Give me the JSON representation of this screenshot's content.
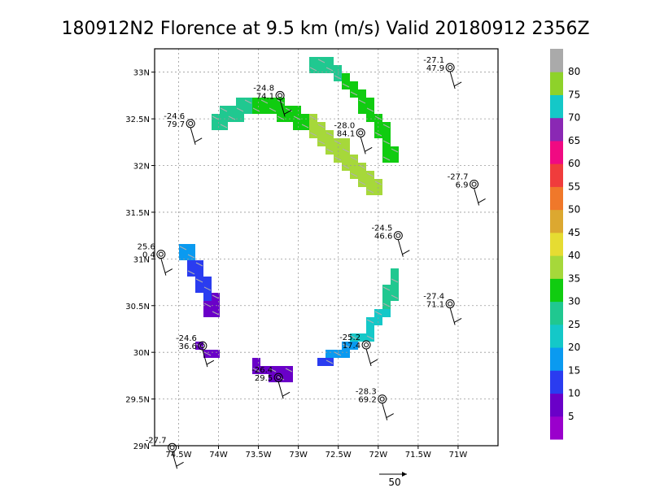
{
  "chart_data": {
    "type": "heatmap",
    "title": "180912N2 Florence at 9.5 km (m/s) Valid 20180912  2356Z",
    "xlim": [
      -74.8,
      -70.5
    ],
    "ylim": [
      29.0,
      33.25
    ],
    "x_ticks": [
      -74.5,
      -74,
      -73.5,
      -73,
      -72.5,
      -72,
      -71.5,
      -71
    ],
    "x_tick_labels": [
      "74.5W",
      "74W",
      "73.5W",
      "73W",
      "72.5W",
      "72W",
      "71.5W",
      "71W"
    ],
    "y_ticks": [
      29,
      29.5,
      30,
      30.5,
      31,
      31.5,
      32,
      32.5,
      33
    ],
    "y_tick_labels": [
      "29N",
      "29.5N",
      "30N",
      "30.5N",
      "31N",
      "31.5N",
      "32N",
      "32.5N",
      "33N"
    ],
    "grid": true,
    "colorbar": {
      "labels": [
        "5",
        "10",
        "15",
        "20",
        "25",
        "30",
        "35",
        "40",
        "45",
        "50",
        "55",
        "60",
        "65",
        "70",
        "75",
        "80"
      ],
      "colors": [
        "#9a00cc",
        "#6a00c8",
        "#2a3cf0",
        "#0a9af0",
        "#14c8c8",
        "#20c890",
        "#10cc10",
        "#a6d83a",
        "#e6dc32",
        "#dca830",
        "#f0782a",
        "#f03c3c",
        "#f00a82",
        "#8a28b4",
        "#14c8c8",
        "#8ed22a",
        "#aaaaaa"
      ]
    },
    "vector_scale": "50",
    "wind_bands": [
      {
        "name": "n-inner",
        "points": [
          [
            -74.0,
            32.45,
            28
          ],
          [
            -73.85,
            32.55,
            28
          ],
          [
            -73.7,
            32.6,
            29
          ],
          [
            -73.55,
            32.62,
            30
          ],
          [
            -73.4,
            32.64,
            30
          ],
          [
            -73.25,
            32.6,
            31
          ],
          [
            -73.1,
            32.55,
            32
          ],
          [
            -72.95,
            32.5,
            34
          ],
          [
            -72.8,
            32.42,
            36
          ],
          [
            -72.65,
            32.32,
            38
          ],
          [
            -72.5,
            32.2,
            39
          ],
          [
            -72.35,
            32.05,
            40
          ],
          [
            -72.2,
            31.9,
            39
          ],
          [
            -72.05,
            31.8,
            36
          ]
        ],
        "width": 0.22
      },
      {
        "name": "n-outer",
        "points": [
          [
            -72.8,
            33.1,
            26
          ],
          [
            -72.6,
            33.05,
            28
          ],
          [
            -72.45,
            32.95,
            30
          ],
          [
            -72.3,
            32.8,
            31
          ],
          [
            -72.15,
            32.65,
            32
          ],
          [
            -72.0,
            32.45,
            33
          ],
          [
            -71.9,
            32.25,
            33
          ],
          [
            -71.85,
            32.05,
            34
          ]
        ],
        "width": 0.17
      },
      {
        "name": "w-band",
        "points": [
          [
            -74.4,
            31.05,
            16
          ],
          [
            -74.3,
            30.9,
            14
          ],
          [
            -74.2,
            30.75,
            12
          ],
          [
            -74.1,
            30.6,
            10
          ],
          [
            -74.05,
            30.45,
            9
          ]
        ],
        "width": 0.2
      },
      {
        "name": "s-band",
        "points": [
          [
            -73.55,
            29.85,
            7
          ],
          [
            -73.4,
            29.8,
            6
          ],
          [
            -73.25,
            29.78,
            7
          ],
          [
            -73.1,
            29.78,
            8
          ]
        ],
        "width": 0.18
      },
      {
        "name": "e-band",
        "points": [
          [
            -72.7,
            29.9,
            14
          ],
          [
            -72.45,
            30.0,
            17
          ],
          [
            -72.2,
            30.15,
            22
          ],
          [
            -72.0,
            30.35,
            24
          ],
          [
            -71.85,
            30.6,
            26
          ],
          [
            -71.8,
            30.85,
            26
          ]
        ],
        "width": 0.14
      },
      {
        "name": "sw-spot",
        "points": [
          [
            -74.2,
            30.05,
            9
          ],
          [
            -74.05,
            29.95,
            10
          ]
        ],
        "width": 0.1
      }
    ],
    "stations": [
      {
        "lon": -71.1,
        "lat": 33.05,
        "v1": "-27.1",
        "v2": "47.9"
      },
      {
        "lon": -73.23,
        "lat": 32.75,
        "v1": "-24.8",
        "v2": "74.1"
      },
      {
        "lon": -74.35,
        "lat": 32.45,
        "v1": "-24.6",
        "v2": "79.7"
      },
      {
        "lon": -72.22,
        "lat": 32.35,
        "v1": "-28.0",
        "v2": "84.1"
      },
      {
        "lon": -70.8,
        "lat": 31.8,
        "v1": "-27.7",
        "v2": "6.9"
      },
      {
        "lon": -71.75,
        "lat": 31.25,
        "v1": "-24.5",
        "v2": "46.6"
      },
      {
        "lon": -74.72,
        "lat": 31.05,
        "v1": "25.6",
        "v2": "0.4"
      },
      {
        "lon": -71.1,
        "lat": 30.52,
        "v1": "-27.4",
        "v2": "71.1"
      },
      {
        "lon": -72.15,
        "lat": 30.08,
        "v1": "-25.2",
        "v2": "17.4"
      },
      {
        "lon": -74.2,
        "lat": 30.07,
        "v1": "-24.6",
        "v2": "36.6"
      },
      {
        "lon": -73.25,
        "lat": 29.73,
        "v1": "-26.4",
        "v2": "29.5"
      },
      {
        "lon": -71.95,
        "lat": 29.5,
        "v1": "-28.3",
        "v2": "69.2"
      },
      {
        "lon": -74.58,
        "lat": 28.98,
        "v1": "-27.7",
        "v2": ""
      }
    ]
  }
}
